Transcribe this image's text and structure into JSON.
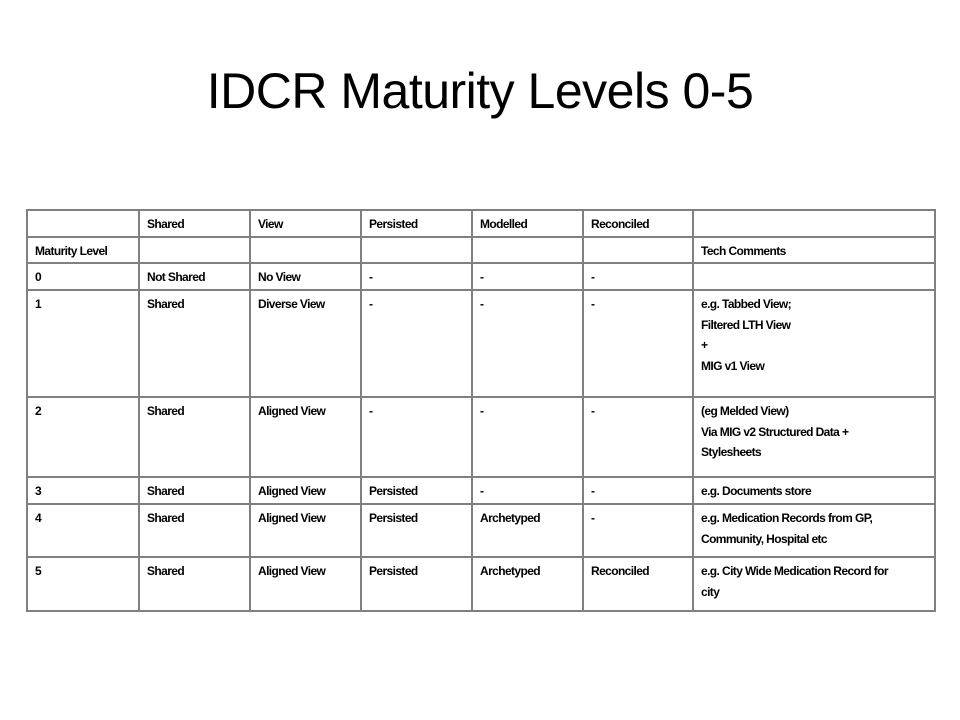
{
  "slide": {
    "title": "IDCR Maturity Levels 0-5"
  },
  "table": {
    "rows": [
      [
        [
          ""
        ],
        [
          "Shared"
        ],
        [
          "View"
        ],
        [
          "Persisted"
        ],
        [
          "Modelled"
        ],
        [
          "Reconciled"
        ],
        [
          ""
        ]
      ],
      [
        [
          "Maturity Level"
        ],
        [
          ""
        ],
        [
          ""
        ],
        [
          ""
        ],
        [
          ""
        ],
        [
          ""
        ],
        [
          "Tech Comments"
        ]
      ],
      [
        [
          "0"
        ],
        [
          "Not Shared"
        ],
        [
          "No View"
        ],
        [
          "-"
        ],
        [
          "-"
        ],
        [
          "-"
        ],
        [
          ""
        ]
      ],
      [
        [
          "1"
        ],
        [
          "Shared"
        ],
        [
          "Diverse View"
        ],
        [
          "-"
        ],
        [
          "-"
        ],
        [
          "-"
        ],
        [
          "e.g. Tabbed View;",
          "Filtered LTH View",
          "+",
          "MIG v1 View"
        ]
      ],
      [
        [
          "2"
        ],
        [
          "Shared"
        ],
        [
          "Aligned View"
        ],
        [
          "-"
        ],
        [
          "-"
        ],
        [
          "-"
        ],
        [
          "(eg Melded View)",
          "Via MIG v2 Structured Data +",
          "Stylesheets"
        ]
      ],
      [
        [
          "3"
        ],
        [
          "Shared"
        ],
        [
          "Aligned View"
        ],
        [
          "Persisted"
        ],
        [
          "-"
        ],
        [
          "-"
        ],
        [
          "e.g. Documents store"
        ]
      ],
      [
        [
          "4"
        ],
        [
          "Shared"
        ],
        [
          "Aligned View"
        ],
        [
          "Persisted"
        ],
        [
          "Archetyped"
        ],
        [
          "-"
        ],
        [
          "e.g. Medication Records from GP,",
          "Community, Hospital etc"
        ]
      ],
      [
        [
          "5"
        ],
        [
          "Shared"
        ],
        [
          "Aligned View"
        ],
        [
          "Persisted"
        ],
        [
          "Archetyped"
        ],
        [
          "Reconciled"
        ],
        [
          "e.g. City Wide Medication Record for",
          "city"
        ]
      ]
    ]
  }
}
